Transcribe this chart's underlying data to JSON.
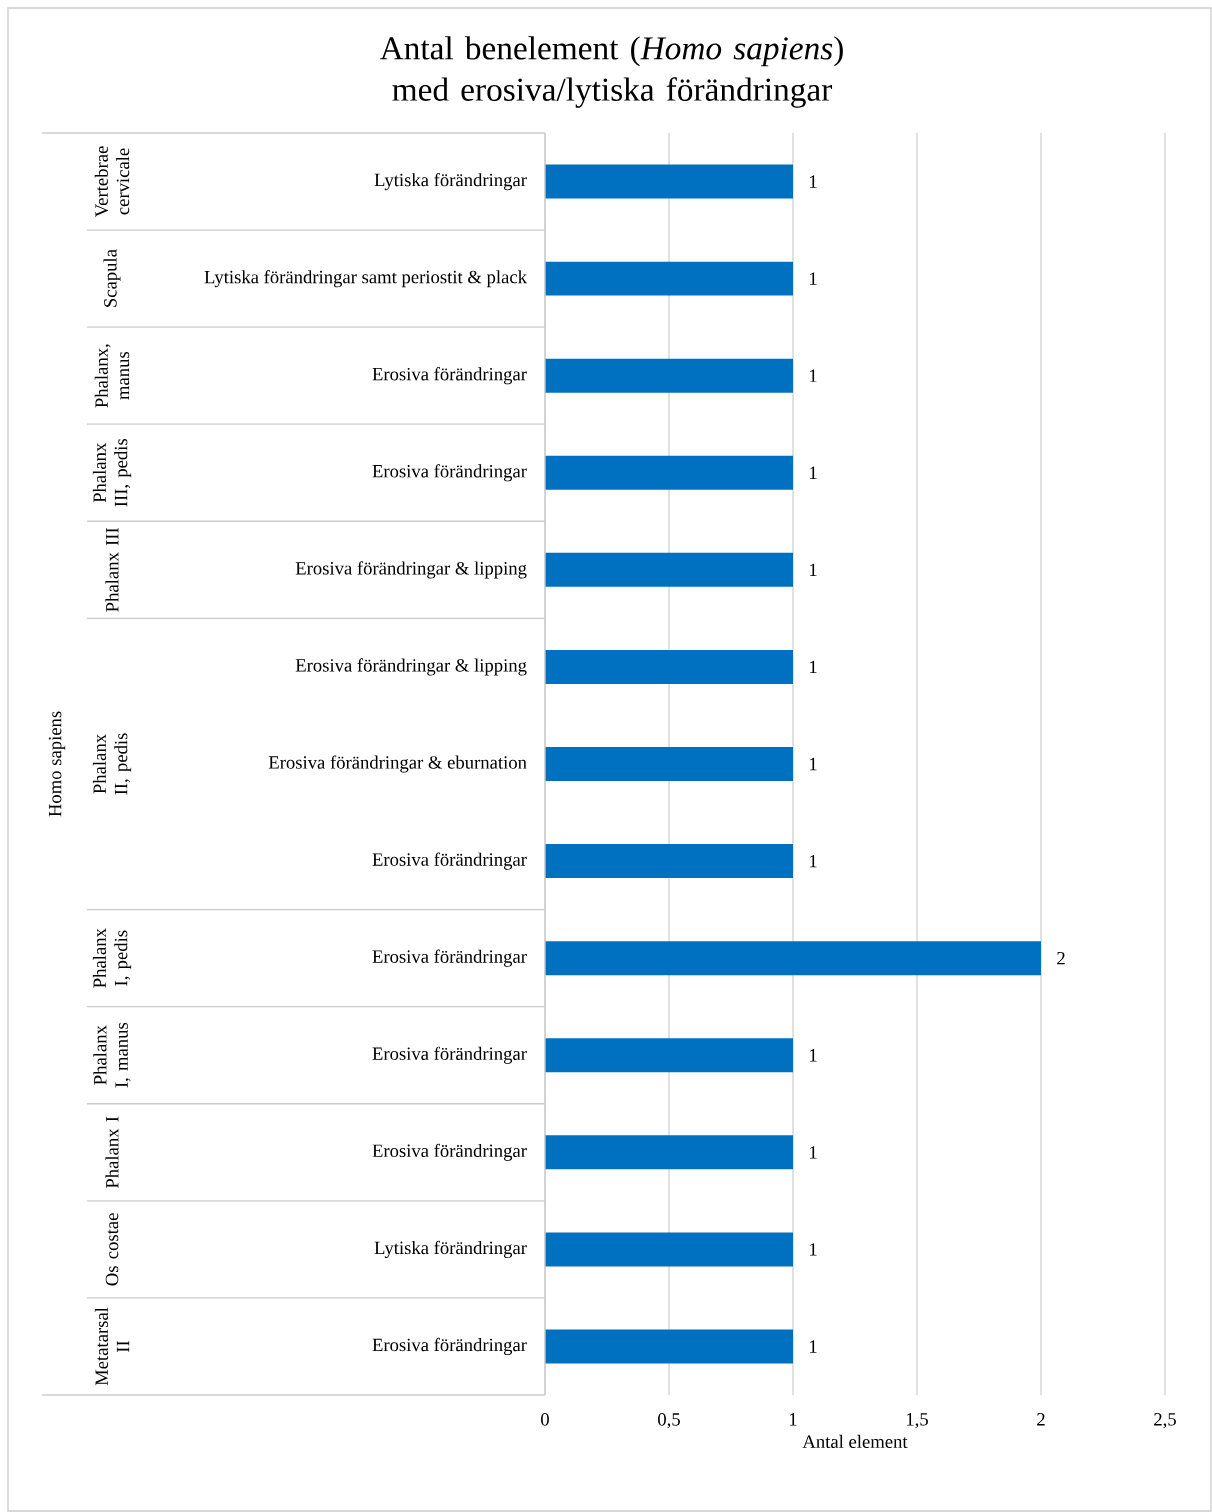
{
  "chart_data": {
    "type": "bar",
    "orientation": "horizontal",
    "title": "Antal benelement (*Homo sapiens*) med erosiva/lytiska förändringar",
    "xlabel": "Antal element",
    "categories": [
      "Lytiska förändringar",
      "Lytiska förändringar samt periostit & plack",
      "Erosiva förändringar",
      "Erosiva förändringar",
      "Erosiva förändringar & lipping",
      "Erosiva förändringar & lipping",
      "Erosiva förändringar & eburnation",
      "Erosiva förändringar",
      "Erosiva förändringar",
      "Erosiva förändringar",
      "Erosiva förändringar",
      "Lytiska förändringar",
      "Erosiva förändringar"
    ],
    "values": [
      1,
      1,
      1,
      1,
      1,
      1,
      1,
      1,
      2,
      1,
      1,
      1,
      1
    ],
    "value_labels": [
      "1",
      "1",
      "1",
      "1",
      "1",
      "1",
      "1",
      "1",
      "2",
      "1",
      "1",
      "1",
      "1"
    ],
    "color": "#0070c0",
    "xlim": [
      0,
      2.5
    ],
    "xticks": [
      0,
      {
        "value": 0.5,
        "label": "0,5"
      },
      1,
      {
        "value": 1.5,
        "label": "1,5"
      },
      2,
      {
        "value": 2.5,
        "label": "2,5"
      }
    ],
    "grid": "x",
    "annotations": [
      "Homo sapiens",
      "Vertebrae cervicale",
      "Scapula",
      "Phalanx, manus",
      "Phalanx III, pedis",
      "Phalanx III",
      "Phalanx II, pedis",
      "Phalanx I, pedis",
      "Phalanx I, manus",
      "Phalanx I",
      "Os costae",
      "Metatarsal II"
    ]
  }
}
